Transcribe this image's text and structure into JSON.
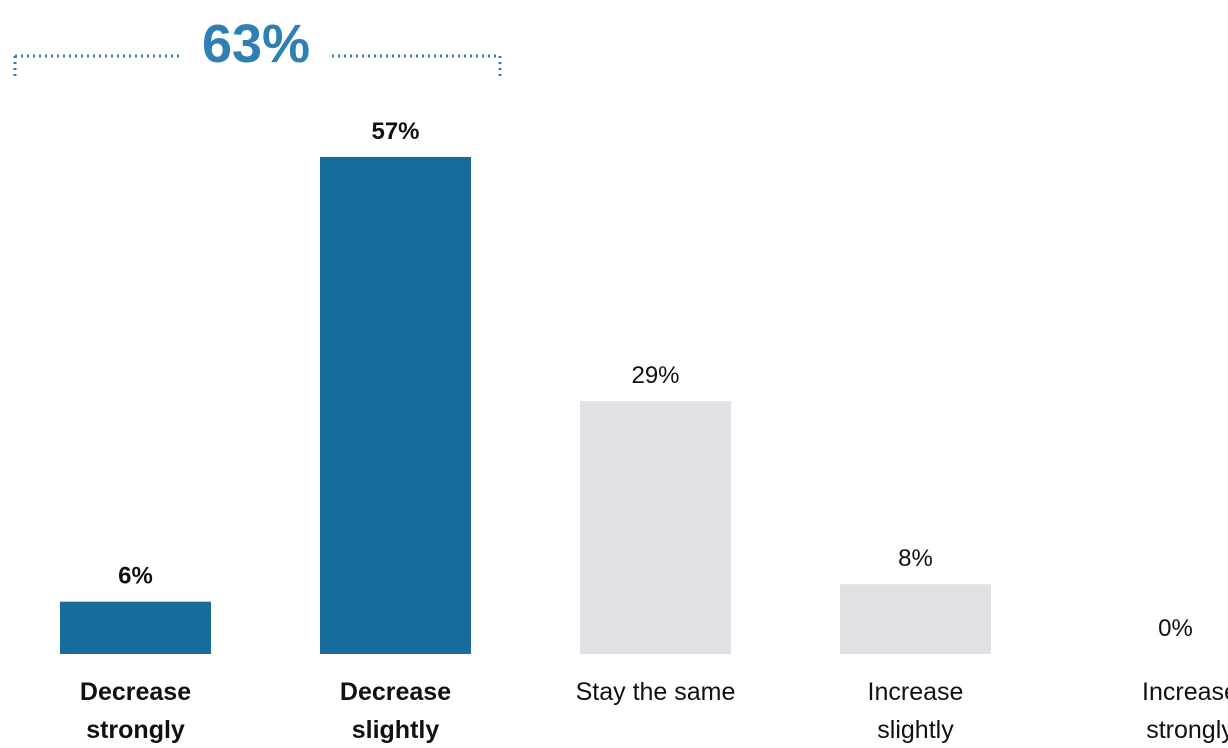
{
  "chart_data": {
    "type": "bar",
    "categories": [
      [
        "Decrease",
        "strongly"
      ],
      [
        "Decrease",
        "slightly"
      ],
      [
        "Stay the same"
      ],
      [
        "Increase",
        "slightly"
      ],
      [
        "Increase",
        "strongly"
      ]
    ],
    "values": [
      6,
      57,
      29,
      8,
      0
    ],
    "value_labels": [
      "6%",
      "57%",
      "29%",
      "8%",
      "0%"
    ],
    "emphasized": [
      true,
      true,
      false,
      false,
      false
    ],
    "ylim": [
      0,
      57
    ],
    "grid": false,
    "summary": {
      "label": "63%",
      "spans_categories": [
        0,
        1
      ]
    }
  },
  "colors": {
    "emphasis": "#186c9b",
    "neutral": "#e0e1e4",
    "text": "#111111",
    "bracket": "#2e7fb4"
  }
}
